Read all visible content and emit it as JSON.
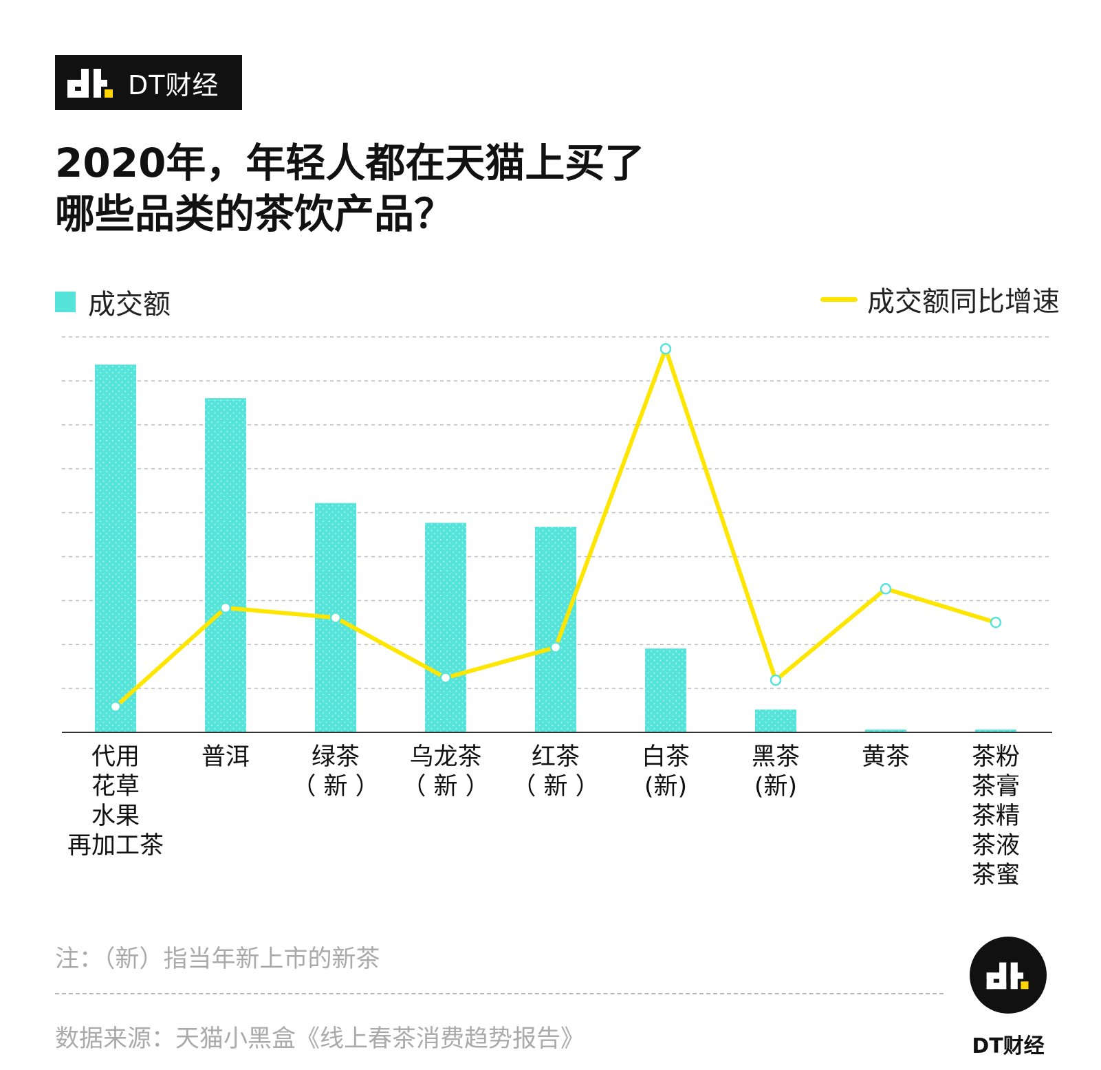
{
  "brand": {
    "name": "DT财经"
  },
  "title": {
    "line1": "2020年，年轻人都在天猫上买了",
    "line2": "哪些品类的茶饮产品？"
  },
  "colors": {
    "bar": "#55E3DA",
    "line": "#FFE600",
    "axis": "#333333",
    "grid": "#bdbdbd"
  },
  "chart_data": {
    "type": "bar",
    "categories": [
      [
        "代用",
        "花草",
        "水果",
        "再加工茶"
      ],
      [
        "普洱"
      ],
      [
        "绿茶",
        "（ 新 ）"
      ],
      [
        "乌龙茶",
        "（ 新 ）"
      ],
      [
        "红茶",
        "（ 新 ）"
      ],
      [
        "白茶",
        "(新)"
      ],
      [
        "黑茶",
        "(新)"
      ],
      [
        "黄茶"
      ],
      [
        "茶粉",
        "茶膏",
        "茶精",
        "茶液",
        "茶蜜"
      ]
    ],
    "series": [
      {
        "name": "成交额",
        "kind": "bar",
        "values": [
          9.3,
          8.45,
          5.8,
          5.3,
          5.2,
          2.12,
          0.58,
          0.07,
          0.07
        ]
      },
      {
        "name": "成交额同比增速",
        "kind": "line",
        "values": [
          0.65,
          3.15,
          2.9,
          1.38,
          2.15,
          9.7,
          1.32,
          3.63,
          2.78
        ]
      }
    ],
    "ylim": [
      0,
      10
    ],
    "gridlines": 9,
    "grid": true,
    "legend": {
      "bar": "top-left",
      "line": "top-right"
    },
    "notes": {
      "note": "注：（新）指当年新上市的新茶",
      "source": "数据来源：天猫小黑盒《线上春茶消费趋势报告》"
    }
  }
}
